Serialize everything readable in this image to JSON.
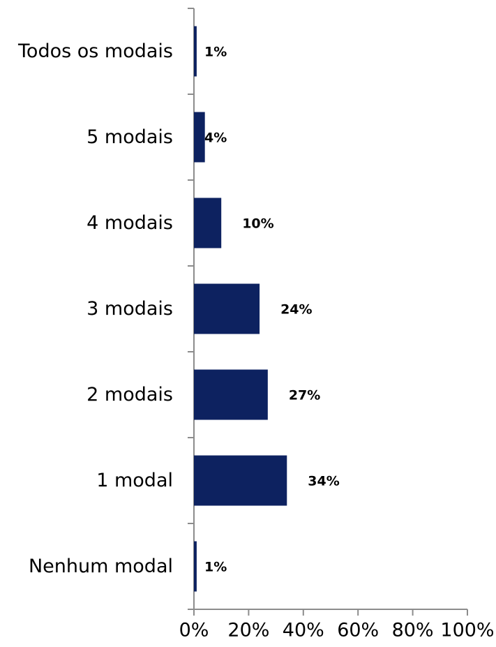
{
  "chart_data": {
    "type": "bar",
    "orientation": "horizontal",
    "categories": [
      "Todos os modais",
      "5 modais",
      "4 modais",
      "3 modais",
      "2 modais",
      "1 modal",
      "Nenhum modal"
    ],
    "values": [
      1,
      4,
      10,
      24,
      27,
      34,
      1
    ],
    "data_labels": [
      "1%",
      "4%",
      "10%",
      "24%",
      "27%",
      "34%",
      "1%"
    ],
    "x_ticks": [
      "0%",
      "20%",
      "40%",
      "60%",
      "80%",
      "100%"
    ],
    "x_tick_values": [
      0,
      20,
      40,
      60,
      80,
      100
    ],
    "xlim": [
      0,
      100
    ],
    "title": "",
    "xlabel": "",
    "ylabel": "",
    "grid": false,
    "legend": "none",
    "bar_color": "#0d2260"
  }
}
